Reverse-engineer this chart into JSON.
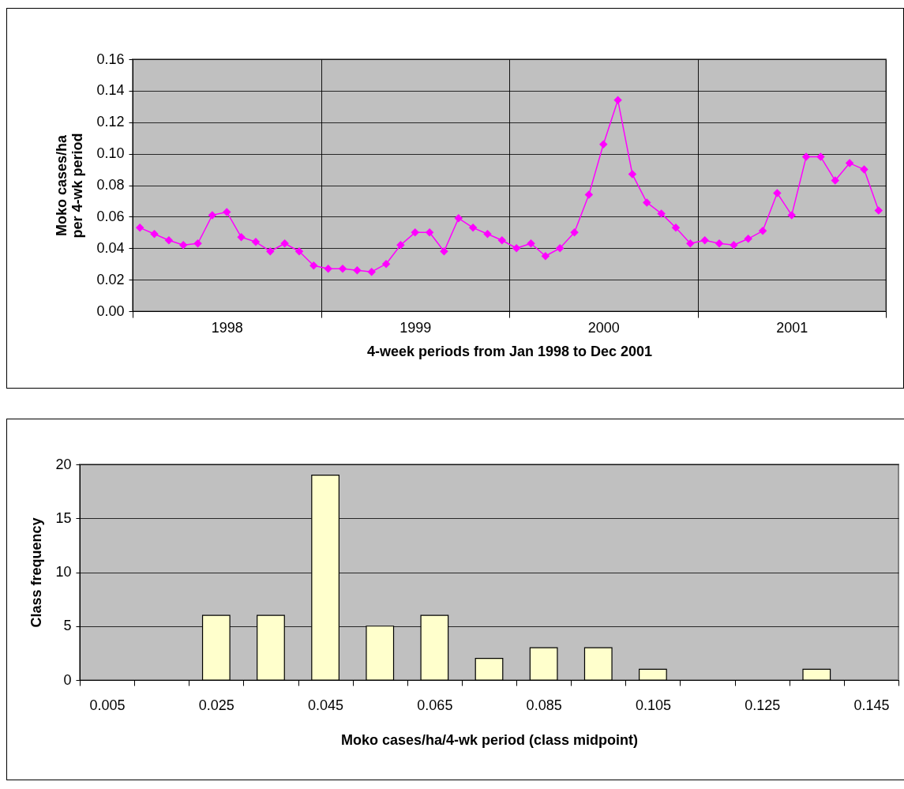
{
  "chart_data": [
    {
      "type": "line",
      "xlabel": "4-week periods from Jan 1998 to Dec 2001",
      "ylabel": "Moko cases/ha\nper 4-wk period",
      "categories": [
        null,
        null,
        null,
        null,
        null,
        null,
        "1998",
        null,
        null,
        null,
        null,
        null,
        null,
        null,
        null,
        null,
        null,
        null,
        null,
        "1999",
        null,
        null,
        null,
        null,
        null,
        null,
        null,
        null,
        null,
        null,
        null,
        null,
        "2000",
        null,
        null,
        null,
        null,
        null,
        null,
        null,
        null,
        null,
        null,
        null,
        null,
        "2001",
        null,
        null,
        null,
        null,
        null,
        null
      ],
      "values": [
        0.053,
        0.049,
        0.045,
        0.042,
        0.043,
        0.061,
        0.063,
        0.047,
        0.044,
        0.038,
        0.043,
        0.038,
        0.029,
        0.027,
        0.027,
        0.026,
        0.025,
        0.03,
        0.042,
        0.05,
        0.05,
        0.038,
        0.059,
        0.053,
        0.049,
        0.045,
        0.04,
        0.043,
        0.035,
        0.04,
        0.05,
        0.074,
        0.106,
        0.134,
        0.087,
        0.069,
        0.062,
        0.053,
        0.043,
        0.045,
        0.043,
        0.042,
        0.046,
        0.051,
        0.075,
        0.061,
        0.098,
        0.098,
        0.083,
        0.094,
        0.09,
        0.064
      ],
      "color": "#ff00ff",
      "marker": "diamond",
      "ylim": [
        0,
        0.16
      ],
      "yticks": [
        {
          "value": 0,
          "label": "0.00"
        },
        0.02,
        0.04,
        0.06,
        0.08,
        {
          "value": 0.1,
          "label": "0.10"
        },
        0.12,
        0.14,
        0.16
      ],
      "grid": true
    },
    {
      "type": "bar",
      "xlabel": "Moko cases/ha/4-wk period (class midpoint)",
      "ylabel": "Class frequency",
      "categories": [
        "0.005",
        null,
        "0.025",
        null,
        "0.045",
        null,
        "0.065",
        null,
        "0.085",
        null,
        "0.105",
        null,
        "0.125",
        null,
        "0.145"
      ],
      "values": [
        0,
        0,
        6,
        6,
        19,
        5,
        6,
        2,
        3,
        3,
        1,
        0,
        0,
        1,
        0
      ],
      "color": "#ffffcc",
      "ylim": [
        0,
        20
      ],
      "yticks": [
        0,
        5,
        10,
        15,
        20
      ],
      "grid": "y"
    }
  ]
}
